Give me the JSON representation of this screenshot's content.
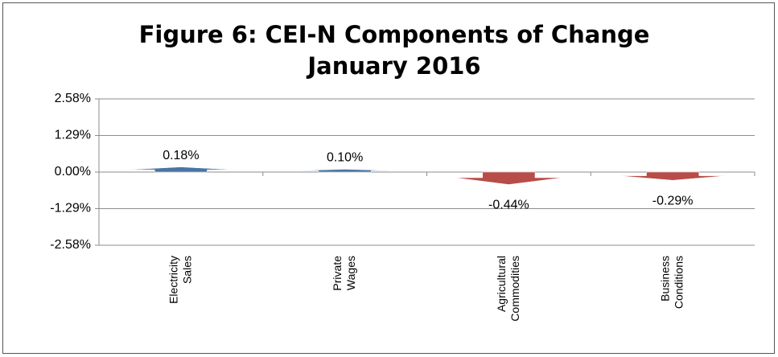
{
  "chart_data": {
    "type": "arrow",
    "title": "Figure 6: CEI-N Components of Change",
    "subtitle": "January 2016",
    "categories": [
      "Electricity Sales",
      "Private Wages",
      "Agricultural Commodities",
      "Business Conditions"
    ],
    "values": [
      0.18,
      0.1,
      -0.44,
      -0.29
    ],
    "value_labels": [
      "0.18%",
      "0.10%",
      "-0.44%",
      "-0.29%"
    ],
    "colors": [
      "#4a74a3",
      "#4a74a3",
      "#b84c48",
      "#b84c48"
    ],
    "ylim": [
      -2.58,
      2.58
    ],
    "yticks": [
      {
        "value": -2.58,
        "label": "-2.58%"
      },
      {
        "value": -1.29,
        "label": "-1.29%"
      },
      {
        "value": 0,
        "label": "0.00%"
      },
      {
        "value": 1.29,
        "label": "1.29%"
      },
      {
        "value": 2.58,
        "label": "2.58%"
      }
    ],
    "grid": true
  }
}
